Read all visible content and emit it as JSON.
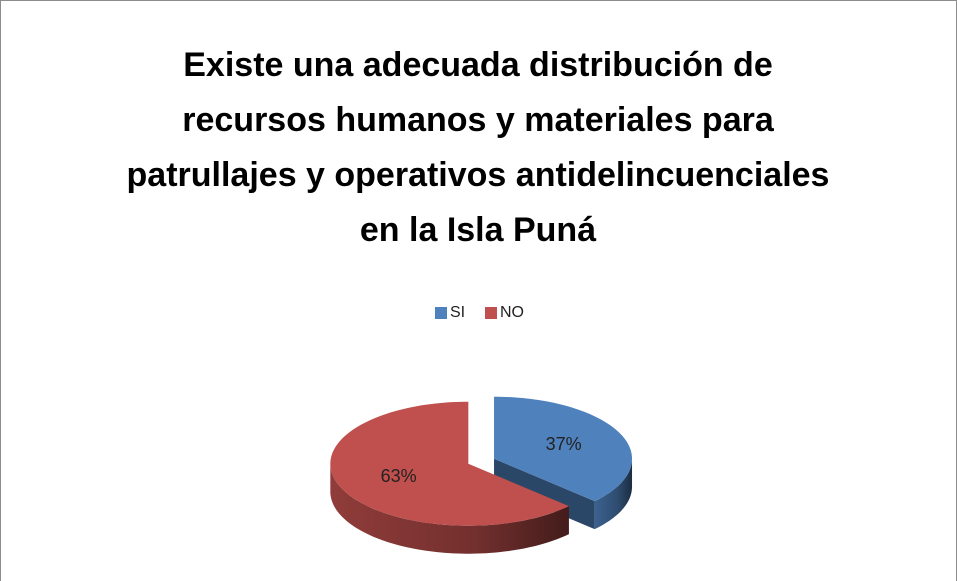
{
  "chart_data": {
    "type": "pie",
    "title": "Existe una adecuada distribución de recursos humanos y materiales para patrullajes y operativos antidelincuenciales en la Isla Puná",
    "categories": [
      "SI",
      "NO"
    ],
    "values": [
      37,
      63
    ],
    "value_labels": [
      "37%",
      "63%"
    ],
    "colors": [
      "#4f81bd",
      "#c0504d"
    ],
    "legend": "top"
  }
}
